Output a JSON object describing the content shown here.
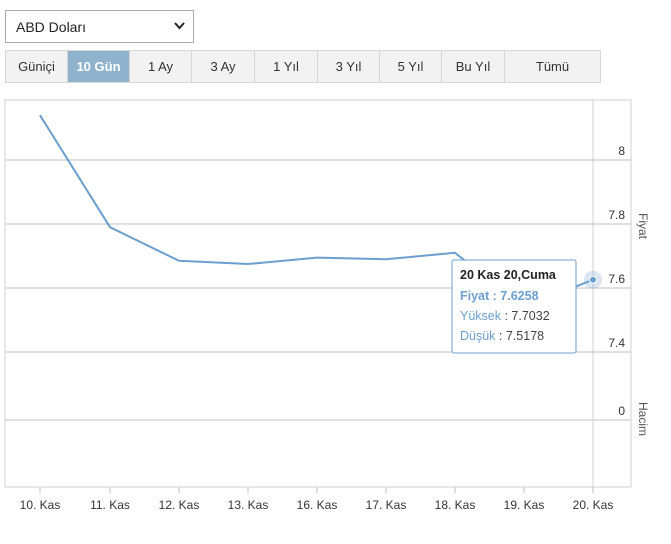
{
  "currency_select": {
    "value": "ABD Doları"
  },
  "ranges": [
    {
      "label": "Güniçi",
      "active": false
    },
    {
      "label": "10 Gün",
      "active": true
    },
    {
      "label": "1 Ay",
      "active": false
    },
    {
      "label": "3 Ay",
      "active": false
    },
    {
      "label": "1 Yıl",
      "active": false
    },
    {
      "label": "3 Yıl",
      "active": false
    },
    {
      "label": "5 Yıl",
      "active": false
    },
    {
      "label": "Bu Yıl",
      "active": false
    },
    {
      "label": "Tümü",
      "active": false
    }
  ],
  "chart_data": {
    "type": "line",
    "categories": [
      "10. Kas",
      "11. Kas",
      "12. Kas",
      "13. Kas",
      "16. Kas",
      "17. Kas",
      "18. Kas",
      "19. Kas",
      "20. Kas"
    ],
    "series": [
      {
        "values": [
          8.14,
          7.79,
          7.685,
          7.675,
          7.695,
          7.69,
          7.71,
          7.54,
          7.6258
        ]
      }
    ],
    "y_axis_title": "Fiyat",
    "y_ticks": [
      7.4,
      7.6,
      7.8,
      8
    ],
    "ylim": [
      7.2,
      8.2
    ],
    "volume_axis_title": "Hacim",
    "volume_ticks": [
      0
    ],
    "line_color": "#6a9fcf",
    "grid": true
  },
  "tooltip": {
    "title": "20 Kas 20,Cuma",
    "fiyat_label": "Fiyat",
    "fiyat_value": "7.6258",
    "yuksek_label": "Yüksek",
    "yuksek_value": "7.7032",
    "dusuk_label": "Düşük",
    "dusuk_value": "7.5178"
  }
}
